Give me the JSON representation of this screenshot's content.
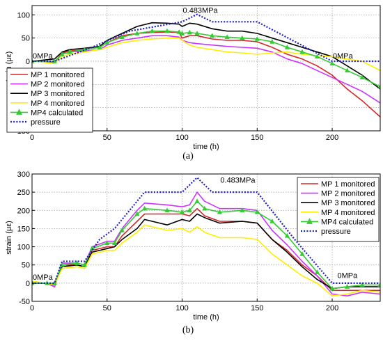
{
  "chart_data": [
    {
      "id": "a",
      "type": "line",
      "caption": "(a)",
      "xlabel": "time (h)",
      "ylabel": "strain (με)",
      "xlim": [
        0,
        232
      ],
      "ylim": [
        -150,
        120
      ],
      "xticks": [
        0,
        50,
        100,
        150,
        200
      ],
      "yticks": [
        -150,
        -100,
        -50,
        0,
        50,
        100
      ],
      "grid": true,
      "legend_position": "left",
      "annotations": [
        {
          "text": "0MPa",
          "x": 0,
          "y": 3
        },
        {
          "text": "0.483MPa",
          "x": 100,
          "y": 101
        },
        {
          "text": "0MPa",
          "x": 200,
          "y": 3
        }
      ],
      "series": [
        {
          "name": "MP 1 monitored",
          "color": "#d62728",
          "style": "solid",
          "x": [
            0,
            15,
            20,
            25,
            35,
            45,
            50,
            60,
            70,
            80,
            90,
            98,
            100,
            105,
            110,
            120,
            130,
            140,
            150,
            160,
            170,
            180,
            190,
            200,
            210,
            220,
            232
          ],
          "y": [
            0,
            -2,
            18,
            22,
            25,
            30,
            40,
            55,
            60,
            62,
            63,
            62,
            50,
            55,
            55,
            48,
            45,
            45,
            42,
            30,
            15,
            5,
            -10,
            -30,
            -60,
            -85,
            -120
          ]
        },
        {
          "name": "MP 2 monitored",
          "color": "#cc33ff",
          "style": "solid",
          "x": [
            0,
            15,
            20,
            25,
            35,
            45,
            50,
            60,
            70,
            80,
            90,
            98,
            100,
            105,
            110,
            120,
            130,
            140,
            150,
            160,
            170,
            180,
            190,
            200,
            210,
            220,
            232
          ],
          "y": [
            0,
            -2,
            16,
            20,
            22,
            25,
            35,
            45,
            50,
            55,
            55,
            52,
            45,
            40,
            38,
            35,
            32,
            30,
            28,
            20,
            5,
            -5,
            -20,
            -35,
            -50,
            -65,
            -90
          ]
        },
        {
          "name": "MP 3 monitored",
          "color": "#000000",
          "style": "solid",
          "x": [
            0,
            15,
            20,
            25,
            35,
            45,
            50,
            60,
            70,
            80,
            90,
            98,
            100,
            105,
            110,
            120,
            130,
            140,
            150,
            160,
            170,
            180,
            190,
            200,
            210,
            220,
            232
          ],
          "y": [
            0,
            5,
            20,
            25,
            28,
            32,
            45,
            60,
            75,
            83,
            82,
            80,
            75,
            82,
            80,
            70,
            65,
            65,
            60,
            50,
            40,
            30,
            20,
            10,
            -10,
            -30,
            -60
          ]
        },
        {
          "name": "MP 4 monitored",
          "color": "#ffee00",
          "style": "solid",
          "x": [
            0,
            15,
            20,
            25,
            35,
            45,
            50,
            60,
            70,
            80,
            90,
            98,
            100,
            105,
            110,
            120,
            130,
            140,
            150,
            160,
            170,
            180,
            190,
            200,
            210,
            220,
            232
          ],
          "y": [
            0,
            -5,
            10,
            15,
            20,
            25,
            30,
            40,
            45,
            48,
            50,
            50,
            45,
            35,
            30,
            25,
            20,
            18,
            15,
            18,
            20,
            15,
            12,
            10,
            5,
            0,
            -20
          ]
        },
        {
          "name": "MP4 calculated",
          "color": "#33cc33",
          "style": "triangle",
          "x": [
            0,
            15,
            20,
            25,
            35,
            45,
            50,
            60,
            70,
            80,
            90,
            98,
            100,
            105,
            110,
            120,
            130,
            140,
            150,
            160,
            170,
            180,
            190,
            200,
            210,
            220,
            232
          ],
          "y": [
            0,
            0,
            15,
            20,
            25,
            30,
            40,
            52,
            60,
            65,
            65,
            63,
            60,
            62,
            60,
            55,
            52,
            50,
            48,
            42,
            30,
            20,
            10,
            -5,
            -20,
            -35,
            -55
          ]
        },
        {
          "name": "pressure",
          "color": "#1f1fbf",
          "style": "dotted",
          "x": [
            0,
            15,
            40,
            65,
            100,
            110,
            120,
            150,
            200,
            232
          ],
          "y": [
            0,
            0,
            30,
            65,
            85,
            101,
            85,
            85,
            0,
            0
          ]
        }
      ]
    },
    {
      "id": "b",
      "type": "line",
      "caption": "(b)",
      "xlabel": "time (h)",
      "ylabel": "strain (με)",
      "xlim": [
        0,
        232
      ],
      "ylim": [
        -50,
        300
      ],
      "xticks": [
        0,
        50,
        100,
        150,
        200
      ],
      "yticks": [
        -50,
        0,
        50,
        100,
        150,
        200,
        250,
        300
      ],
      "grid": true,
      "legend_position": "top-right",
      "annotations": [
        {
          "text": "0MPa",
          "x": 0,
          "y": 5
        },
        {
          "text": "0.483MPa",
          "x": 125,
          "y": 272
        },
        {
          "text": "0MPa",
          "x": 203,
          "y": 10
        }
      ],
      "series": [
        {
          "name": "MP 1 monitored",
          "color": "#d62728",
          "style": "solid",
          "x": [
            0,
            10,
            15,
            20,
            30,
            35,
            40,
            50,
            55,
            60,
            70,
            75,
            90,
            100,
            105,
            110,
            115,
            125,
            140,
            150,
            160,
            170,
            180,
            190,
            200,
            210,
            220,
            232
          ],
          "y": [
            0,
            0,
            -10,
            50,
            50,
            45,
            90,
            100,
            100,
            130,
            170,
            190,
            190,
            190,
            185,
            205,
            185,
            170,
            170,
            165,
            120,
            90,
            50,
            20,
            -20,
            -20,
            -20,
            -20
          ]
        },
        {
          "name": "MP 2 monitored",
          "color": "#cc33ff",
          "style": "solid",
          "x": [
            0,
            10,
            15,
            20,
            30,
            35,
            40,
            50,
            55,
            60,
            70,
            75,
            90,
            100,
            105,
            110,
            115,
            125,
            140,
            150,
            160,
            170,
            180,
            190,
            200,
            210,
            220,
            232
          ],
          "y": [
            0,
            0,
            -10,
            55,
            55,
            50,
            100,
            115,
            115,
            150,
            200,
            220,
            215,
            210,
            215,
            250,
            225,
            205,
            205,
            200,
            145,
            105,
            60,
            20,
            -30,
            -35,
            -25,
            -30
          ]
        },
        {
          "name": "MP 3 monitored",
          "color": "#000000",
          "style": "solid",
          "x": [
            0,
            10,
            15,
            20,
            30,
            35,
            40,
            50,
            55,
            60,
            70,
            75,
            90,
            100,
            105,
            110,
            115,
            125,
            140,
            150,
            160,
            170,
            180,
            190,
            200,
            210,
            220,
            232
          ],
          "y": [
            0,
            0,
            -5,
            45,
            50,
            45,
            85,
            95,
            100,
            120,
            150,
            175,
            160,
            175,
            170,
            190,
            180,
            165,
            170,
            165,
            120,
            85,
            45,
            10,
            -15,
            -10,
            -10,
            -10
          ]
        },
        {
          "name": "MP 4 monitored",
          "color": "#ffee00",
          "style": "solid",
          "x": [
            0,
            10,
            15,
            20,
            30,
            35,
            40,
            50,
            55,
            60,
            70,
            75,
            90,
            100,
            105,
            110,
            115,
            125,
            140,
            150,
            160,
            170,
            180,
            190,
            200,
            210,
            220,
            232
          ],
          "y": [
            5,
            0,
            -5,
            40,
            45,
            40,
            80,
            90,
            90,
            110,
            140,
            160,
            145,
            150,
            140,
            155,
            140,
            125,
            125,
            120,
            80,
            50,
            20,
            0,
            -35,
            -30,
            -20,
            -25
          ]
        },
        {
          "name": "MP4 calculated",
          "color": "#33cc33",
          "style": "triangle",
          "x": [
            0,
            10,
            15,
            20,
            30,
            35,
            40,
            50,
            55,
            60,
            70,
            75,
            90,
            100,
            105,
            110,
            115,
            125,
            140,
            150,
            160,
            170,
            180,
            190,
            200,
            210,
            220,
            232
          ],
          "y": [
            0,
            0,
            0,
            50,
            55,
            50,
            95,
            110,
            110,
            145,
            190,
            205,
            200,
            195,
            200,
            225,
            205,
            195,
            200,
            195,
            170,
            130,
            80,
            30,
            -15,
            -10,
            -5,
            -5
          ]
        },
        {
          "name": "pressure",
          "color": "#1f1fbf",
          "style": "dotted",
          "x": [
            0,
            15,
            20,
            30,
            35,
            45,
            55,
            65,
            75,
            100,
            105,
            110,
            115,
            120,
            150,
            175,
            200,
            232
          ],
          "y": [
            0,
            0,
            60,
            60,
            60,
            120,
            150,
            200,
            250,
            250,
            270,
            290,
            270,
            250,
            250,
            120,
            0,
            0
          ]
        }
      ]
    }
  ]
}
